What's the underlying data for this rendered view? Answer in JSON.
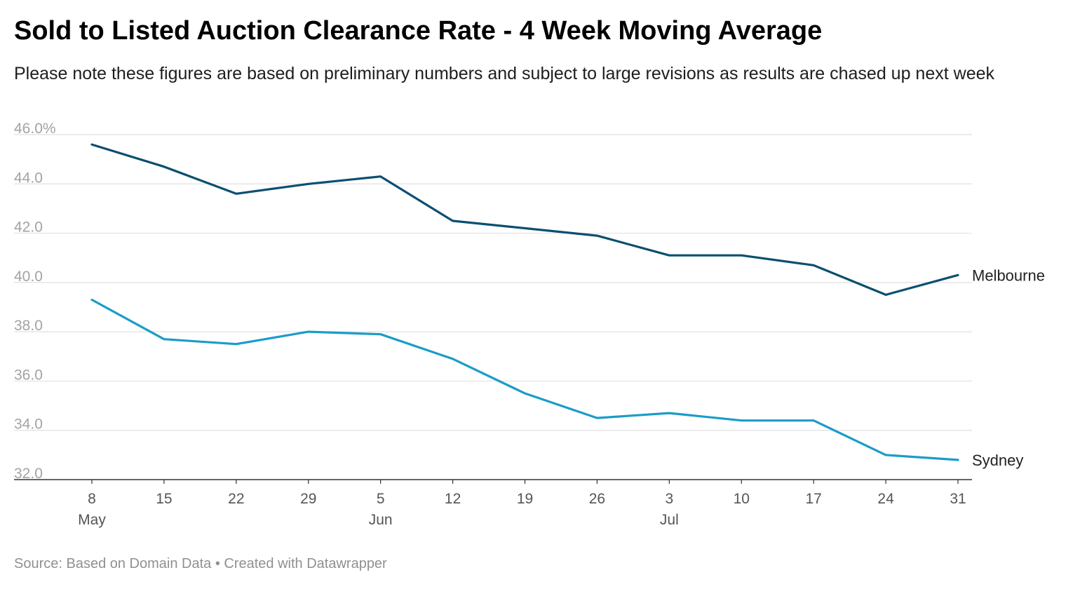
{
  "title": "Sold to Listed Auction Clearance Rate - 4 Week Moving Average",
  "subtitle": "Please note these figures are based on preliminary numbers and subject to large revisions as results are chased up next week",
  "footer": "Source: Based on Domain Data • Created with Datawrapper",
  "chart_data": {
    "type": "line",
    "x": [
      "8 May",
      "15 May",
      "22 May",
      "29 May",
      "5 Jun",
      "12 Jun",
      "19 Jun",
      "26 Jun",
      "3 Jul",
      "10 Jul",
      "17 Jul",
      "24 Jul",
      "31 Jul"
    ],
    "x_tick_labels": [
      "8",
      "15",
      "22",
      "29",
      "5",
      "12",
      "19",
      "26",
      "3",
      "10",
      "17",
      "24",
      "31"
    ],
    "month_labels": [
      {
        "label": "May",
        "at_index": 0
      },
      {
        "label": "Jun",
        "at_index": 4
      },
      {
        "label": "Jul",
        "at_index": 8
      }
    ],
    "y_ticks": [
      {
        "value": 46,
        "label": "46.0%"
      },
      {
        "value": 44,
        "label": "44.0"
      },
      {
        "value": 42,
        "label": "42.0"
      },
      {
        "value": 40,
        "label": "40.0"
      },
      {
        "value": 38,
        "label": "38.0"
      },
      {
        "value": 36,
        "label": "36.0"
      },
      {
        "value": 34,
        "label": "34.0"
      },
      {
        "value": 32,
        "label": "32.0"
      }
    ],
    "ylim": [
      32,
      46
    ],
    "grid": true,
    "series": [
      {
        "name": "Melbourne",
        "color": "#0b4f71",
        "values": [
          45.6,
          44.7,
          43.6,
          44.0,
          44.3,
          42.5,
          42.2,
          41.9,
          41.1,
          41.1,
          40.7,
          39.5,
          40.3
        ]
      },
      {
        "name": "Sydney",
        "color": "#1b9cc9",
        "values": [
          39.3,
          37.7,
          37.5,
          38.0,
          37.9,
          36.9,
          35.5,
          34.5,
          34.7,
          34.4,
          34.4,
          33.0,
          32.8
        ]
      }
    ]
  }
}
